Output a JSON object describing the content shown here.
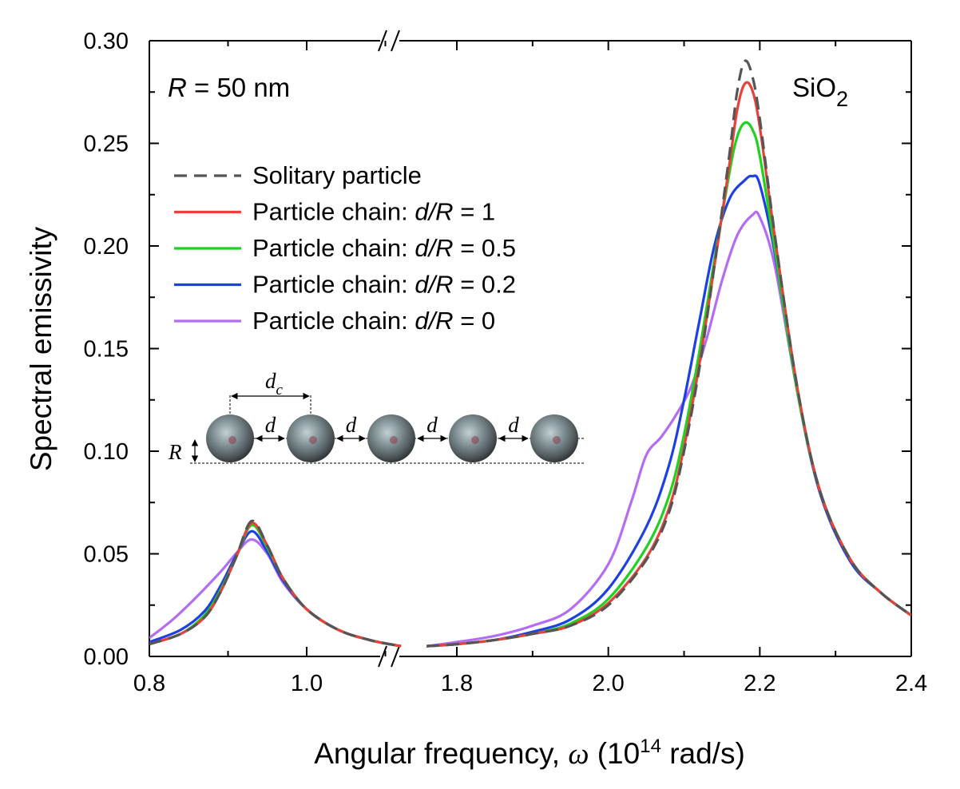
{
  "chart_data": {
    "type": "line",
    "xlabel_prefix": "Angular frequency, ",
    "xlabel_symbol": "ω",
    "xlabel_open": " (10",
    "xlabel_exp": "14",
    "xlabel_unit": " rad/s)",
    "ylabel": "Spectral emissivity",
    "ylim": [
      0,
      0.3
    ],
    "x_segments": [
      [
        0.8,
        1.12
      ],
      [
        1.73,
        2.4
      ]
    ],
    "x_ticks": [
      {
        "value": 0.8,
        "label": "0.8"
      },
      {
        "value": 1.0,
        "label": "1.0"
      },
      {
        "value": 1.8,
        "label": "1.8"
      },
      {
        "value": 2.0,
        "label": "2.0"
      },
      {
        "value": 2.2,
        "label": "2.2"
      },
      {
        "value": 2.4,
        "label": "2.4"
      }
    ],
    "y_ticks": [
      {
        "value": 0.0,
        "label": "0.00"
      },
      {
        "value": 0.05,
        "label": "0.05"
      },
      {
        "value": 0.1,
        "label": "0.10"
      },
      {
        "value": 0.15,
        "label": "0.15"
      },
      {
        "value": 0.2,
        "label": "0.20"
      },
      {
        "value": 0.25,
        "label": "0.25"
      },
      {
        "value": 0.3,
        "label": "0.30"
      }
    ],
    "grid": false,
    "legend_position": "upper-left",
    "annotations": {
      "radius_symbol": "R",
      "radius_value": " = 50 nm",
      "material_base": "SiO",
      "material_sub": "2"
    },
    "series": [
      {
        "name": "Solitary particle",
        "color": "#555555",
        "dash": true,
        "points": [
          [
            0.8,
            0.006
          ],
          [
            0.84,
            0.011
          ],
          [
            0.87,
            0.019
          ],
          [
            0.89,
            0.031
          ],
          [
            0.91,
            0.048
          ],
          [
            0.93,
            0.066
          ],
          [
            0.95,
            0.054
          ],
          [
            0.97,
            0.038
          ],
          [
            1.0,
            0.023
          ],
          [
            1.04,
            0.013
          ],
          [
            1.08,
            0.008
          ],
          [
            1.12,
            0.005
          ],
          [
            1.76,
            0.005
          ],
          [
            1.8,
            0.006
          ],
          [
            1.85,
            0.008
          ],
          [
            1.9,
            0.011
          ],
          [
            1.95,
            0.015
          ],
          [
            2.0,
            0.025
          ],
          [
            2.05,
            0.047
          ],
          [
            2.08,
            0.07
          ],
          [
            2.1,
            0.1
          ],
          [
            2.12,
            0.14
          ],
          [
            2.14,
            0.19
          ],
          [
            2.16,
            0.245
          ],
          [
            2.17,
            0.275
          ],
          [
            2.18,
            0.29
          ],
          [
            2.19,
            0.283
          ],
          [
            2.2,
            0.262
          ],
          [
            2.22,
            0.205
          ],
          [
            2.25,
            0.13
          ],
          [
            2.28,
            0.08
          ],
          [
            2.32,
            0.047
          ],
          [
            2.36,
            0.031
          ],
          [
            2.4,
            0.02
          ]
        ]
      },
      {
        "name": "Particle chain: d/R = 1",
        "legend_prefix": "Particle chain: ",
        "legend_var": "d/R",
        "legend_value": " = 1",
        "color": "#e8413a",
        "dash": false,
        "points": [
          [
            0.8,
            0.006
          ],
          [
            0.84,
            0.011
          ],
          [
            0.87,
            0.019
          ],
          [
            0.89,
            0.031
          ],
          [
            0.91,
            0.048
          ],
          [
            0.93,
            0.065
          ],
          [
            0.95,
            0.054
          ],
          [
            0.97,
            0.038
          ],
          [
            1.0,
            0.023
          ],
          [
            1.04,
            0.013
          ],
          [
            1.08,
            0.008
          ],
          [
            1.12,
            0.005
          ],
          [
            1.76,
            0.005
          ],
          [
            1.8,
            0.006
          ],
          [
            1.85,
            0.008
          ],
          [
            1.9,
            0.011
          ],
          [
            1.95,
            0.015
          ],
          [
            2.0,
            0.026
          ],
          [
            2.05,
            0.048
          ],
          [
            2.08,
            0.072
          ],
          [
            2.1,
            0.102
          ],
          [
            2.12,
            0.142
          ],
          [
            2.14,
            0.19
          ],
          [
            2.16,
            0.24
          ],
          [
            2.17,
            0.266
          ],
          [
            2.18,
            0.279
          ],
          [
            2.19,
            0.276
          ],
          [
            2.2,
            0.258
          ],
          [
            2.22,
            0.204
          ],
          [
            2.25,
            0.13
          ],
          [
            2.28,
            0.08
          ],
          [
            2.32,
            0.047
          ],
          [
            2.36,
            0.031
          ],
          [
            2.4,
            0.02
          ]
        ]
      },
      {
        "name": "Particle chain: d/R = 0.5",
        "legend_prefix": "Particle chain: ",
        "legend_var": "d/R",
        "legend_value": " = 0.5",
        "color": "#1fd21f",
        "dash": false,
        "points": [
          [
            0.8,
            0.006
          ],
          [
            0.84,
            0.011
          ],
          [
            0.87,
            0.02
          ],
          [
            0.89,
            0.032
          ],
          [
            0.91,
            0.048
          ],
          [
            0.93,
            0.064
          ],
          [
            0.95,
            0.053
          ],
          [
            0.97,
            0.038
          ],
          [
            1.0,
            0.023
          ],
          [
            1.04,
            0.013
          ],
          [
            1.08,
            0.008
          ],
          [
            1.12,
            0.005
          ],
          [
            1.76,
            0.005
          ],
          [
            1.8,
            0.006
          ],
          [
            1.85,
            0.008
          ],
          [
            1.9,
            0.011
          ],
          [
            1.95,
            0.016
          ],
          [
            2.0,
            0.028
          ],
          [
            2.05,
            0.053
          ],
          [
            2.08,
            0.078
          ],
          [
            2.1,
            0.108
          ],
          [
            2.12,
            0.148
          ],
          [
            2.14,
            0.193
          ],
          [
            2.16,
            0.236
          ],
          [
            2.17,
            0.253
          ],
          [
            2.18,
            0.26
          ],
          [
            2.19,
            0.257
          ],
          [
            2.2,
            0.244
          ],
          [
            2.22,
            0.198
          ],
          [
            2.25,
            0.128
          ],
          [
            2.28,
            0.08
          ],
          [
            2.32,
            0.047
          ],
          [
            2.36,
            0.031
          ],
          [
            2.4,
            0.02
          ]
        ]
      },
      {
        "name": "Particle chain: d/R = 0.2",
        "legend_prefix": "Particle chain: ",
        "legend_var": "d/R",
        "legend_value": " = 0.2",
        "color": "#1c3fe6",
        "dash": false,
        "points": [
          [
            0.8,
            0.007
          ],
          [
            0.84,
            0.013
          ],
          [
            0.87,
            0.022
          ],
          [
            0.89,
            0.034
          ],
          [
            0.91,
            0.049
          ],
          [
            0.93,
            0.061
          ],
          [
            0.95,
            0.051
          ],
          [
            0.97,
            0.037
          ],
          [
            1.0,
            0.023
          ],
          [
            1.04,
            0.013
          ],
          [
            1.08,
            0.008
          ],
          [
            1.12,
            0.005
          ],
          [
            1.76,
            0.005
          ],
          [
            1.8,
            0.006
          ],
          [
            1.85,
            0.008
          ],
          [
            1.9,
            0.012
          ],
          [
            1.95,
            0.018
          ],
          [
            2.0,
            0.033
          ],
          [
            2.05,
            0.063
          ],
          [
            2.08,
            0.093
          ],
          [
            2.1,
            0.125
          ],
          [
            2.12,
            0.163
          ],
          [
            2.14,
            0.2
          ],
          [
            2.16,
            0.223
          ],
          [
            2.18,
            0.232
          ],
          [
            2.19,
            0.234
          ],
          [
            2.2,
            0.23
          ],
          [
            2.22,
            0.196
          ],
          [
            2.25,
            0.128
          ],
          [
            2.28,
            0.079
          ],
          [
            2.32,
            0.046
          ],
          [
            2.36,
            0.031
          ],
          [
            2.4,
            0.02
          ]
        ]
      },
      {
        "name": "Particle chain: d/R = 0",
        "legend_prefix": "Particle chain: ",
        "legend_var": "d/R",
        "legend_value": " = 0",
        "color": "#b46cf2",
        "dash": false,
        "points": [
          [
            0.8,
            0.009
          ],
          [
            0.83,
            0.018
          ],
          [
            0.86,
            0.029
          ],
          [
            0.89,
            0.041
          ],
          [
            0.91,
            0.05
          ],
          [
            0.93,
            0.057
          ],
          [
            0.95,
            0.05
          ],
          [
            0.97,
            0.036
          ],
          [
            1.0,
            0.023
          ],
          [
            1.04,
            0.013
          ],
          [
            1.08,
            0.008
          ],
          [
            1.12,
            0.005
          ],
          [
            1.76,
            0.005
          ],
          [
            1.8,
            0.007
          ],
          [
            1.85,
            0.01
          ],
          [
            1.9,
            0.015
          ],
          [
            1.95,
            0.023
          ],
          [
            2.0,
            0.045
          ],
          [
            2.03,
            0.075
          ],
          [
            2.05,
            0.098
          ],
          [
            2.07,
            0.107
          ],
          [
            2.09,
            0.118
          ],
          [
            2.11,
            0.132
          ],
          [
            2.13,
            0.155
          ],
          [
            2.15,
            0.183
          ],
          [
            2.17,
            0.205
          ],
          [
            2.19,
            0.215
          ],
          [
            2.2,
            0.214
          ],
          [
            2.22,
            0.19
          ],
          [
            2.25,
            0.128
          ],
          [
            2.28,
            0.08
          ],
          [
            2.32,
            0.047
          ],
          [
            2.36,
            0.031
          ],
          [
            2.4,
            0.02
          ]
        ]
      }
    ],
    "inset": {
      "spacing_label": "d",
      "center_label": "d",
      "center_label_sub": "c",
      "radius_label": "R"
    }
  }
}
